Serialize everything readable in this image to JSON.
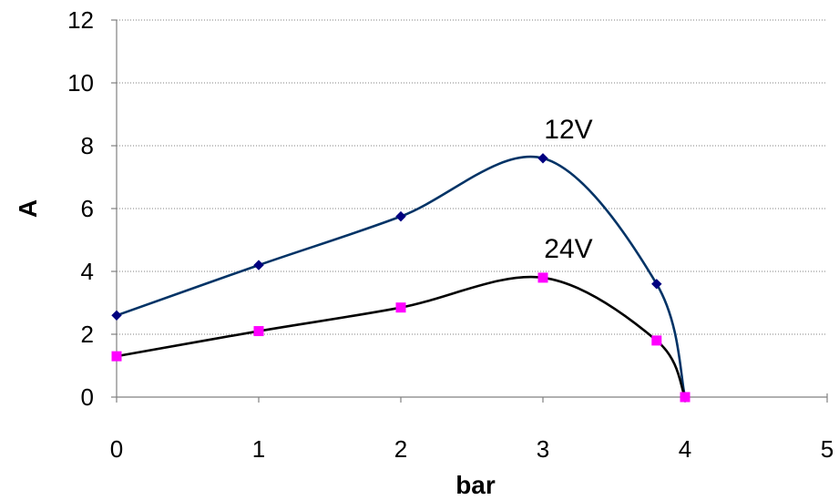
{
  "chart_data": {
    "type": "line",
    "xlabel": "bar",
    "ylabel": "A",
    "xlim": [
      0,
      5
    ],
    "ylim": [
      0,
      12
    ],
    "xticks": [
      "0",
      "1",
      "2",
      "3",
      "4",
      "5"
    ],
    "yticks": [
      "0",
      "2",
      "4",
      "6",
      "8",
      "10",
      "12"
    ],
    "grid": "horizontal-dotted",
    "smooth": true,
    "series": [
      {
        "name": "12V",
        "color": "#003366",
        "marker": "diamond",
        "marker_color": "#000080",
        "x": [
          0,
          1,
          2,
          3,
          3.8,
          4
        ],
        "y": [
          2.6,
          4.2,
          5.75,
          7.6,
          3.6,
          0
        ]
      },
      {
        "name": "24V",
        "color": "#000000",
        "marker": "square",
        "marker_color": "#ff00ff",
        "x": [
          0,
          1,
          2,
          3,
          3.8,
          4
        ],
        "y": [
          1.3,
          2.1,
          2.85,
          3.8,
          1.8,
          0
        ]
      }
    ]
  }
}
